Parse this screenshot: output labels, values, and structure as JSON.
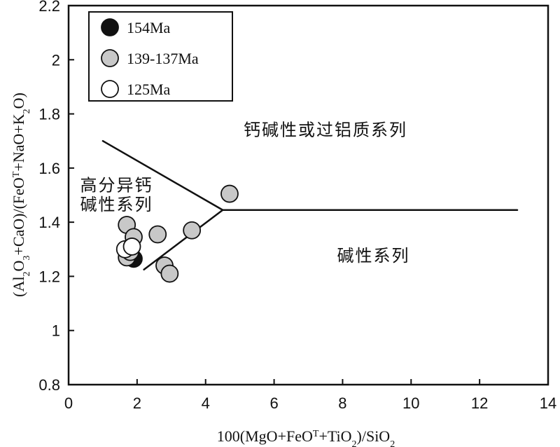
{
  "chart_data": {
    "type": "scatter",
    "title": "",
    "xlabel": {
      "prefix": "100(MgO+FeO",
      "sup": "T",
      "mid": "+TiO",
      "sub": "2",
      "suffix": ")/SiO",
      "sub2": "2"
    },
    "ylabel": {
      "p1": "(Al",
      "s1": "2",
      "p2": "O",
      "s2": "3",
      "p3": "+CaO)/(FeO",
      "sup": "T",
      "p4": "+NaO+K",
      "s3": "2",
      "p5": "O)"
    },
    "xlim": [
      0,
      14
    ],
    "ylim": [
      0.8,
      2.2
    ],
    "xticks": [
      "0",
      "2",
      "4",
      "6",
      "8",
      "10",
      "12",
      "14"
    ],
    "yticks": [
      "0.8",
      "1",
      "1.2",
      "1.4",
      "1.6",
      "1.8",
      "2",
      "2.2"
    ],
    "grid": false,
    "legend_position": "top-left",
    "series": [
      {
        "name": "154Ma",
        "color": "#111111",
        "points": [
          [
            1.9,
            1.265
          ]
        ]
      },
      {
        "name": "139-137Ma",
        "color": "#c8c8c8",
        "points": [
          [
            1.7,
            1.39
          ],
          [
            1.9,
            1.345
          ],
          [
            2.6,
            1.355
          ],
          [
            3.6,
            1.37
          ],
          [
            4.7,
            1.505
          ],
          [
            2.8,
            1.24
          ],
          [
            2.95,
            1.21
          ],
          [
            1.7,
            1.27
          ],
          [
            1.8,
            1.29
          ]
        ]
      },
      {
        "name": "125Ma",
        "color": "#ffffff",
        "points": [
          [
            1.65,
            1.3
          ],
          [
            1.85,
            1.31
          ]
        ]
      }
    ],
    "boundary_lines": [
      [
        [
          1.0,
          1.7
        ],
        [
          4.5,
          1.445
        ]
      ],
      [
        [
          2.2,
          1.225
        ],
        [
          4.5,
          1.445
        ]
      ],
      [
        [
          4.5,
          1.445
        ],
        [
          13.1,
          1.445
        ]
      ]
    ],
    "annotations": [
      {
        "text": "钙碱性或过铝质系列",
        "x": 7.5,
        "y": 1.72
      },
      {
        "text": "高分异钙",
        "x": 1.4,
        "y": 1.515
      },
      {
        "text": "碱性系列",
        "x": 1.4,
        "y": 1.445
      },
      {
        "text": "碱性系列",
        "x": 8.9,
        "y": 1.255
      }
    ]
  }
}
